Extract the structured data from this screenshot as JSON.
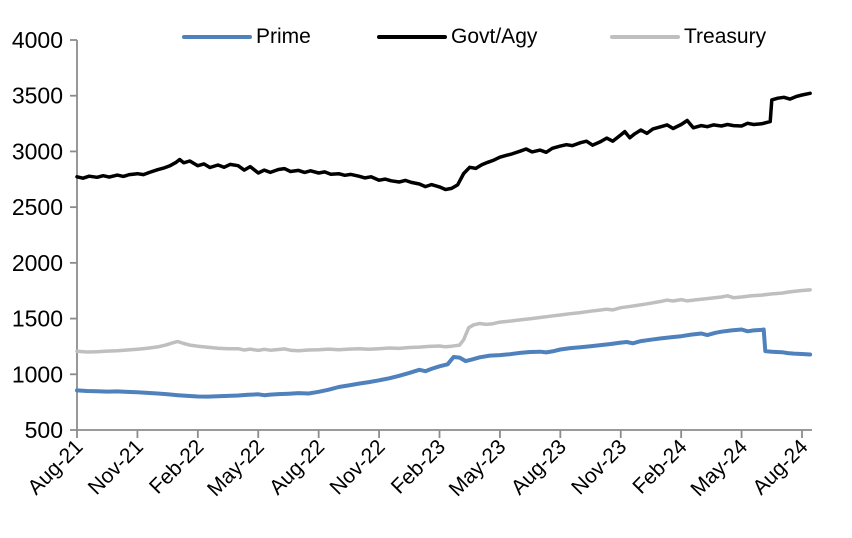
{
  "chart_data": {
    "type": "line",
    "title": "",
    "xlabel": "",
    "ylabel": "",
    "grid": false,
    "legend_position": "top",
    "axis_color": "#8C8C8C",
    "label_color": "#000000",
    "background_color": "#FFFFFF",
    "y_axis": {
      "min": 500,
      "max": 4000,
      "step": 500,
      "tick_labels": [
        "4000",
        "3500",
        "3000",
        "2500",
        "2000",
        "1500",
        "1000",
        "500"
      ]
    },
    "x_axis": {
      "tick_labels": [
        "Aug-21",
        "Nov-21",
        "Feb-22",
        "May-22",
        "Aug-22",
        "Nov-22",
        "Feb-23",
        "May-23",
        "Aug-23",
        "Nov-23",
        "Feb-24",
        "May-24",
        "Aug-24"
      ],
      "tick_months": [
        0,
        3,
        6,
        9,
        12,
        15,
        18,
        21,
        24,
        27,
        30,
        33,
        36
      ],
      "label_rotation_deg": -45
    },
    "series": [
      {
        "name": "Prime",
        "color": "#4F81BD",
        "line_width": 4,
        "points": [
          [
            0,
            855
          ],
          [
            0.5,
            850
          ],
          [
            1,
            848
          ],
          [
            1.5,
            845
          ],
          [
            2,
            846
          ],
          [
            2.5,
            842
          ],
          [
            3,
            838
          ],
          [
            3.5,
            833
          ],
          [
            4,
            828
          ],
          [
            4.5,
            820
          ],
          [
            5,
            812
          ],
          [
            5.5,
            806
          ],
          [
            6,
            801
          ],
          [
            6.5,
            800
          ],
          [
            7,
            803
          ],
          [
            7.5,
            806
          ],
          [
            8,
            810
          ],
          [
            8.5,
            816
          ],
          [
            9,
            820
          ],
          [
            9.3,
            812
          ],
          [
            9.6,
            818
          ],
          [
            10,
            822
          ],
          [
            10.5,
            826
          ],
          [
            11,
            831
          ],
          [
            11.5,
            828
          ],
          [
            12,
            843
          ],
          [
            12.5,
            862
          ],
          [
            13,
            886
          ],
          [
            13.5,
            900
          ],
          [
            14,
            916
          ],
          [
            14.5,
            930
          ],
          [
            15,
            946
          ],
          [
            15.5,
            964
          ],
          [
            16,
            986
          ],
          [
            16.5,
            1012
          ],
          [
            17,
            1040
          ],
          [
            17.3,
            1028
          ],
          [
            17.6,
            1048
          ],
          [
            18,
            1072
          ],
          [
            18.4,
            1090
          ],
          [
            18.7,
            1155
          ],
          [
            19,
            1150
          ],
          [
            19.3,
            1118
          ],
          [
            19.6,
            1132
          ],
          [
            20,
            1152
          ],
          [
            20.5,
            1168
          ],
          [
            21,
            1172
          ],
          [
            21.5,
            1180
          ],
          [
            22,
            1192
          ],
          [
            22.5,
            1200
          ],
          [
            23,
            1203
          ],
          [
            23.3,
            1196
          ],
          [
            23.6,
            1205
          ],
          [
            24,
            1222
          ],
          [
            24.5,
            1235
          ],
          [
            25,
            1243
          ],
          [
            25.5,
            1252
          ],
          [
            26,
            1262
          ],
          [
            26.5,
            1272
          ],
          [
            27,
            1284
          ],
          [
            27.3,
            1290
          ],
          [
            27.6,
            1278
          ],
          [
            28,
            1298
          ],
          [
            28.5,
            1310
          ],
          [
            29,
            1322
          ],
          [
            29.5,
            1332
          ],
          [
            30,
            1342
          ],
          [
            30.5,
            1356
          ],
          [
            31,
            1366
          ],
          [
            31.3,
            1352
          ],
          [
            31.7,
            1372
          ],
          [
            32,
            1382
          ],
          [
            32.5,
            1394
          ],
          [
            33,
            1402
          ],
          [
            33.3,
            1386
          ],
          [
            33.6,
            1394
          ],
          [
            34,
            1398
          ],
          [
            34.1,
            1402
          ],
          [
            34.18,
            1208
          ],
          [
            34.5,
            1202
          ],
          [
            35,
            1198
          ],
          [
            35.3,
            1190
          ],
          [
            35.6,
            1186
          ],
          [
            36,
            1182
          ],
          [
            36.4,
            1178
          ]
        ]
      },
      {
        "name": "Govt/Agy",
        "color": "#000000",
        "line_width": 3.5,
        "points": [
          [
            0,
            2772
          ],
          [
            0.3,
            2760
          ],
          [
            0.6,
            2778
          ],
          [
            1,
            2768
          ],
          [
            1.3,
            2782
          ],
          [
            1.6,
            2770
          ],
          [
            2,
            2788
          ],
          [
            2.3,
            2776
          ],
          [
            2.6,
            2792
          ],
          [
            3,
            2800
          ],
          [
            3.3,
            2792
          ],
          [
            3.6,
            2812
          ],
          [
            4,
            2836
          ],
          [
            4.3,
            2850
          ],
          [
            4.6,
            2870
          ],
          [
            4.9,
            2900
          ],
          [
            5.1,
            2928
          ],
          [
            5.3,
            2898
          ],
          [
            5.6,
            2914
          ],
          [
            6,
            2872
          ],
          [
            6.3,
            2888
          ],
          [
            6.6,
            2856
          ],
          [
            7,
            2878
          ],
          [
            7.3,
            2858
          ],
          [
            7.6,
            2884
          ],
          [
            8,
            2872
          ],
          [
            8.3,
            2832
          ],
          [
            8.6,
            2864
          ],
          [
            9,
            2806
          ],
          [
            9.3,
            2832
          ],
          [
            9.6,
            2812
          ],
          [
            10,
            2838
          ],
          [
            10.3,
            2846
          ],
          [
            10.6,
            2820
          ],
          [
            11,
            2830
          ],
          [
            11.3,
            2812
          ],
          [
            11.6,
            2826
          ],
          [
            12,
            2806
          ],
          [
            12.3,
            2816
          ],
          [
            12.6,
            2796
          ],
          [
            13,
            2800
          ],
          [
            13.3,
            2786
          ],
          [
            13.6,
            2794
          ],
          [
            14,
            2778
          ],
          [
            14.3,
            2762
          ],
          [
            14.6,
            2772
          ],
          [
            15,
            2742
          ],
          [
            15.3,
            2752
          ],
          [
            15.6,
            2736
          ],
          [
            16,
            2726
          ],
          [
            16.3,
            2740
          ],
          [
            16.6,
            2722
          ],
          [
            17,
            2708
          ],
          [
            17.3,
            2684
          ],
          [
            17.6,
            2702
          ],
          [
            18,
            2682
          ],
          [
            18.3,
            2658
          ],
          [
            18.6,
            2668
          ],
          [
            18.9,
            2700
          ],
          [
            19.2,
            2802
          ],
          [
            19.5,
            2858
          ],
          [
            19.8,
            2848
          ],
          [
            20.1,
            2880
          ],
          [
            20.4,
            2902
          ],
          [
            20.7,
            2922
          ],
          [
            21,
            2948
          ],
          [
            21.3,
            2964
          ],
          [
            21.6,
            2978
          ],
          [
            22,
            3002
          ],
          [
            22.3,
            3022
          ],
          [
            22.6,
            2996
          ],
          [
            23,
            3012
          ],
          [
            23.3,
            2992
          ],
          [
            23.6,
            3028
          ],
          [
            24,
            3048
          ],
          [
            24.3,
            3060
          ],
          [
            24.6,
            3052
          ],
          [
            25,
            3078
          ],
          [
            25.3,
            3092
          ],
          [
            25.6,
            3056
          ],
          [
            26,
            3088
          ],
          [
            26.3,
            3120
          ],
          [
            26.6,
            3092
          ],
          [
            27,
            3148
          ],
          [
            27.2,
            3178
          ],
          [
            27.45,
            3122
          ],
          [
            27.7,
            3158
          ],
          [
            28,
            3192
          ],
          [
            28.3,
            3162
          ],
          [
            28.6,
            3202
          ],
          [
            29,
            3222
          ],
          [
            29.3,
            3238
          ],
          [
            29.6,
            3206
          ],
          [
            30,
            3242
          ],
          [
            30.3,
            3278
          ],
          [
            30.6,
            3212
          ],
          [
            31,
            3232
          ],
          [
            31.3,
            3222
          ],
          [
            31.6,
            3238
          ],
          [
            32,
            3228
          ],
          [
            32.3,
            3242
          ],
          [
            32.6,
            3232
          ],
          [
            33,
            3228
          ],
          [
            33.3,
            3252
          ],
          [
            33.6,
            3242
          ],
          [
            34,
            3248
          ],
          [
            34.3,
            3262
          ],
          [
            34.42,
            3268
          ],
          [
            34.5,
            3462
          ],
          [
            34.8,
            3478
          ],
          [
            35.1,
            3486
          ],
          [
            35.4,
            3470
          ],
          [
            35.7,
            3492
          ],
          [
            36,
            3506
          ],
          [
            36.4,
            3522
          ]
        ]
      },
      {
        "name": "Treasury",
        "color": "#BFBFBF",
        "line_width": 3.5,
        "points": [
          [
            0,
            1206
          ],
          [
            0.5,
            1200
          ],
          [
            1,
            1202
          ],
          [
            1.5,
            1208
          ],
          [
            2,
            1212
          ],
          [
            2.5,
            1218
          ],
          [
            3,
            1224
          ],
          [
            3.5,
            1234
          ],
          [
            4,
            1246
          ],
          [
            4.4,
            1262
          ],
          [
            4.8,
            1284
          ],
          [
            5,
            1294
          ],
          [
            5.3,
            1276
          ],
          [
            5.6,
            1262
          ],
          [
            6,
            1252
          ],
          [
            6.5,
            1242
          ],
          [
            7,
            1234
          ],
          [
            7.5,
            1230
          ],
          [
            8,
            1230
          ],
          [
            8.3,
            1218
          ],
          [
            8.6,
            1226
          ],
          [
            9,
            1214
          ],
          [
            9.3,
            1224
          ],
          [
            9.6,
            1216
          ],
          [
            10,
            1222
          ],
          [
            10.3,
            1228
          ],
          [
            10.6,
            1216
          ],
          [
            11,
            1212
          ],
          [
            11.5,
            1218
          ],
          [
            12,
            1220
          ],
          [
            12.5,
            1226
          ],
          [
            13,
            1221
          ],
          [
            13.5,
            1226
          ],
          [
            14,
            1229
          ],
          [
            14.5,
            1224
          ],
          [
            15,
            1230
          ],
          [
            15.5,
            1236
          ],
          [
            16,
            1232
          ],
          [
            16.5,
            1240
          ],
          [
            17,
            1244
          ],
          [
            17.5,
            1250
          ],
          [
            18,
            1254
          ],
          [
            18.3,
            1247
          ],
          [
            18.6,
            1252
          ],
          [
            19,
            1262
          ],
          [
            19.2,
            1310
          ],
          [
            19.45,
            1418
          ],
          [
            19.7,
            1444
          ],
          [
            20,
            1456
          ],
          [
            20.3,
            1448
          ],
          [
            20.6,
            1452
          ],
          [
            21,
            1468
          ],
          [
            21.5,
            1477
          ],
          [
            22,
            1488
          ],
          [
            22.5,
            1499
          ],
          [
            23,
            1510
          ],
          [
            23.5,
            1521
          ],
          [
            24,
            1532
          ],
          [
            24.5,
            1544
          ],
          [
            25,
            1554
          ],
          [
            25.5,
            1566
          ],
          [
            26,
            1577
          ],
          [
            26.3,
            1584
          ],
          [
            26.6,
            1578
          ],
          [
            27,
            1598
          ],
          [
            27.5,
            1610
          ],
          [
            28,
            1624
          ],
          [
            28.5,
            1638
          ],
          [
            29,
            1654
          ],
          [
            29.3,
            1666
          ],
          [
            29.6,
            1658
          ],
          [
            30,
            1670
          ],
          [
            30.3,
            1659
          ],
          [
            30.7,
            1668
          ],
          [
            31,
            1673
          ],
          [
            31.5,
            1684
          ],
          [
            32,
            1694
          ],
          [
            32.3,
            1704
          ],
          [
            32.6,
            1687
          ],
          [
            33,
            1694
          ],
          [
            33.5,
            1704
          ],
          [
            34,
            1711
          ],
          [
            34.5,
            1721
          ],
          [
            35,
            1729
          ],
          [
            35.3,
            1738
          ],
          [
            35.6,
            1744
          ],
          [
            36,
            1752
          ],
          [
            36.4,
            1757
          ]
        ]
      }
    ]
  }
}
